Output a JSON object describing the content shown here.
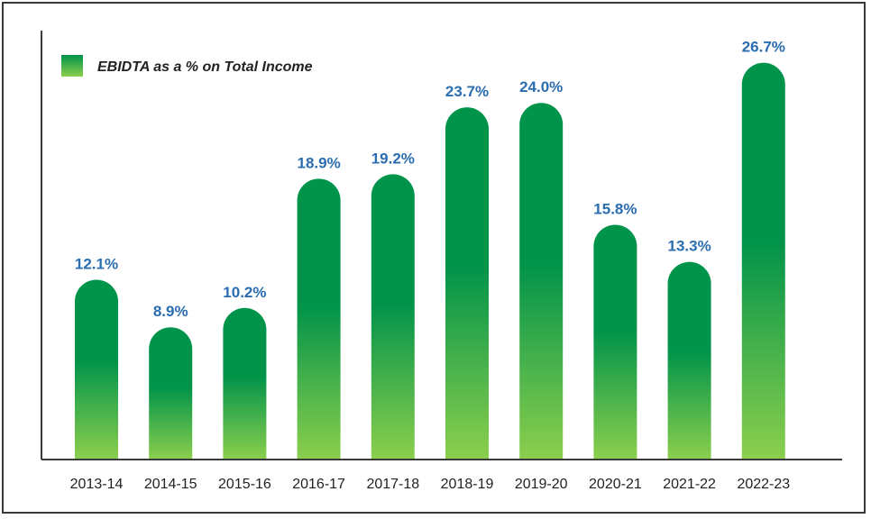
{
  "chart_data": {
    "type": "bar",
    "categories": [
      "2013-14",
      "2014-15",
      "2015-16",
      "2016-17",
      "2017-18",
      "2018-19",
      "2019-20",
      "2020-21",
      "2021-22",
      "2022-23"
    ],
    "series": [
      {
        "name": "EBIDTA as a % on Total Income",
        "values": [
          12.1,
          8.9,
          10.2,
          18.9,
          19.2,
          23.7,
          24.0,
          15.8,
          13.3,
          26.7
        ],
        "value_labels": [
          "12.1%",
          "8.9%",
          "10.2%",
          "18.9%",
          "19.2%",
          "23.7%",
          "24.0%",
          "15.8%",
          "13.3%",
          "26.7%"
        ]
      }
    ],
    "title": "",
    "xlabel": "",
    "ylabel": "",
    "ylim": [
      0,
      28.5
    ],
    "grid": false,
    "legend_position": "top-left",
    "colors": {
      "bar_top": "#00934a",
      "bar_bottom": "#8ccf4d",
      "label": "#2a6db0",
      "axis": "#3a3a3a"
    }
  }
}
